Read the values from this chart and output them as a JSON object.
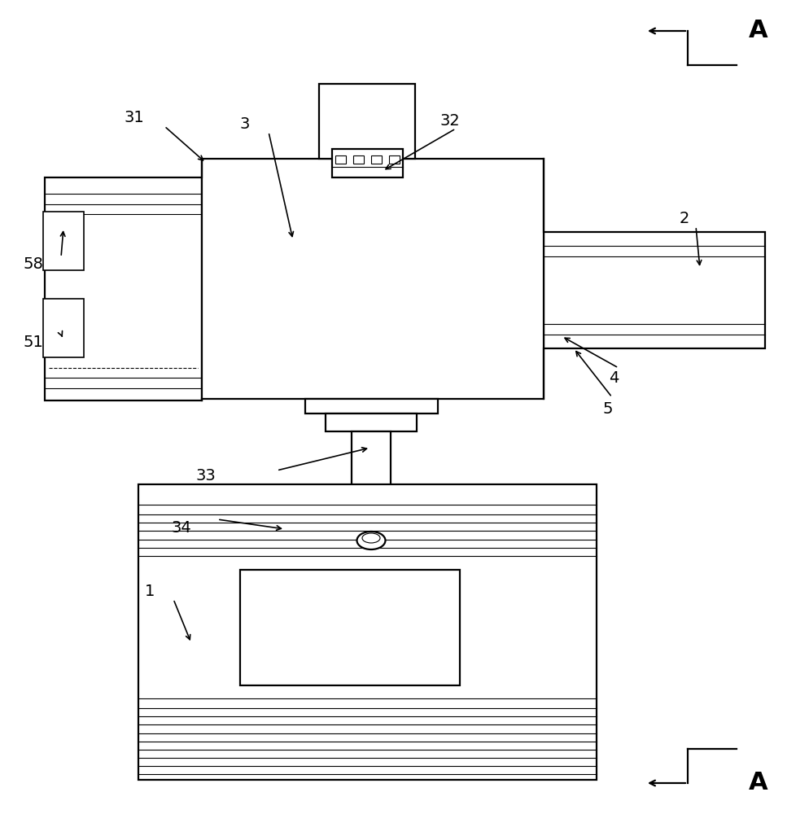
{
  "bg_color": "#ffffff",
  "lc": "#000000",
  "lw": 1.6,
  "lwt": 0.8,
  "lwm": 1.2,
  "fs": 14,
  "figsize": [
    9.94,
    10.0
  ],
  "dpi": 100
}
